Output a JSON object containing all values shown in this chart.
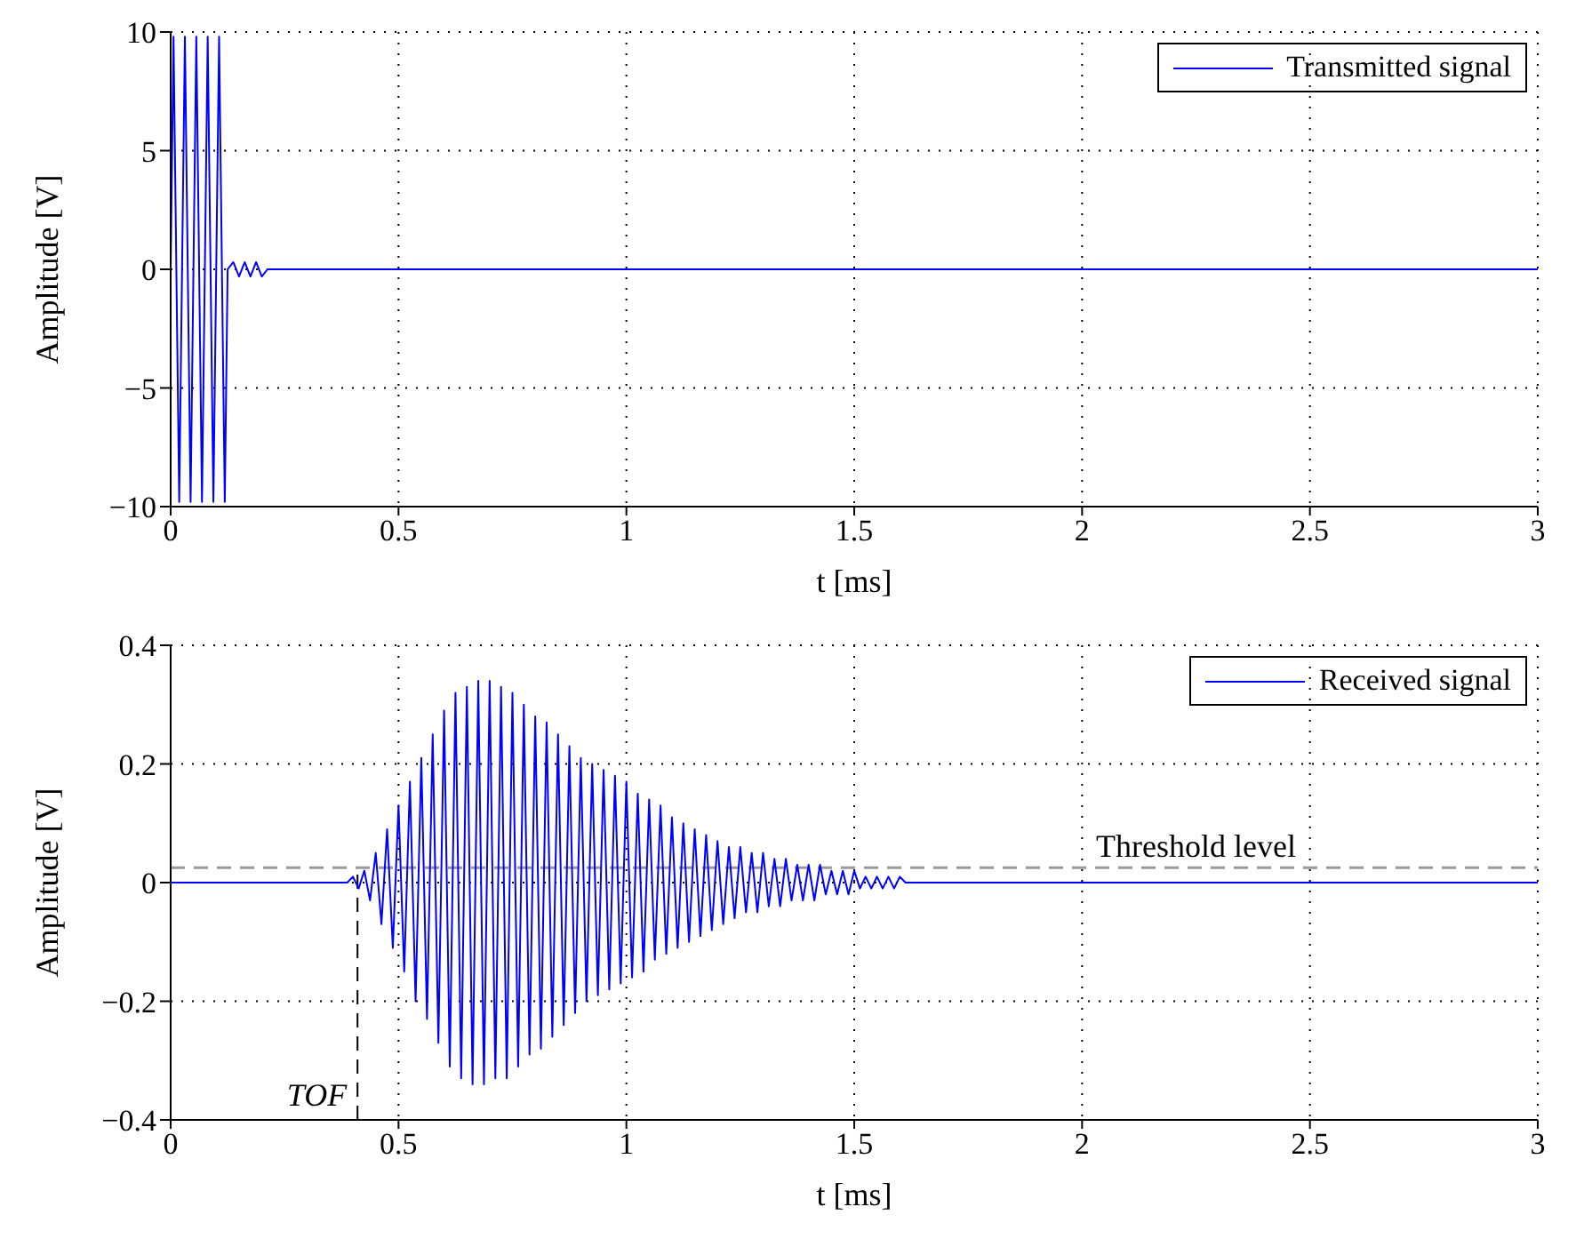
{
  "chart_data": [
    {
      "type": "line",
      "xlabel": "t [ms]",
      "ylabel": "Amplitude [V]",
      "xlim": [
        0,
        3
      ],
      "xticks": [
        0,
        0.5,
        1,
        1.5,
        2,
        2.5,
        3
      ],
      "ylim": [
        -10,
        10
      ],
      "yticks": [
        -10,
        -5,
        0,
        5,
        10
      ],
      "grid": true,
      "legend": "top right",
      "marker": "none",
      "line_style": "solid",
      "series": [
        {
          "name": "Transmitted signal",
          "color": "#0000ff",
          "x": [
            0,
            0.00625,
            0.01875,
            0.03125,
            0.04375,
            0.05625,
            0.06875,
            0.08125,
            0.09375,
            0.10625,
            0.11875,
            0.125,
            0.1375,
            0.15,
            0.1625,
            0.175,
            0.1875,
            0.2,
            0.2125,
            3
          ],
          "values": [
            0,
            9.8,
            -9.8,
            9.8,
            -9.8,
            9.8,
            -9.8,
            9.8,
            -9.8,
            9.8,
            -9.8,
            0,
            0.3,
            -0.3,
            0.3,
            -0.3,
            0.3,
            -0.3,
            0,
            0
          ]
        }
      ]
    },
    {
      "type": "line",
      "xlabel": "t [ms]",
      "ylabel": "Amplitude [V]",
      "xlim": [
        0,
        3
      ],
      "xticks": [
        0,
        0.5,
        1,
        1.5,
        2,
        2.5,
        3
      ],
      "ylim": [
        -0.4,
        0.4
      ],
      "yticks": [
        -0.4,
        -0.2,
        0,
        0.2,
        0.4
      ],
      "grid": true,
      "legend": "top right",
      "marker": "none",
      "line_style": "solid",
      "series": [
        {
          "name": "Received signal",
          "color": "#0000ff",
          "x": [
            0,
            0.3875,
            0.4,
            0.4125,
            0.425,
            0.4375,
            0.45,
            0.4625,
            0.475,
            0.4875,
            0.5,
            0.5125,
            0.525,
            0.5375,
            0.55,
            0.5625,
            0.575,
            0.5875,
            0.6,
            0.6125,
            0.625,
            0.6375,
            0.65,
            0.6625,
            0.675,
            0.6875,
            0.7,
            0.7125,
            0.725,
            0.7375,
            0.75,
            0.7625,
            0.775,
            0.7875,
            0.8,
            0.8125,
            0.825,
            0.8375,
            0.85,
            0.8625,
            0.875,
            0.8875,
            0.9,
            0.9125,
            0.925,
            0.9375,
            0.95,
            0.9625,
            0.975,
            0.9875,
            1,
            1.0125,
            1.025,
            1.0375,
            1.05,
            1.0625,
            1.075,
            1.0875,
            1.1,
            1.1125,
            1.125,
            1.1375,
            1.15,
            1.1625,
            1.175,
            1.1875,
            1.2,
            1.2125,
            1.225,
            1.2375,
            1.25,
            1.2625,
            1.275,
            1.2875,
            1.3,
            1.3125,
            1.325,
            1.3375,
            1.35,
            1.3625,
            1.375,
            1.3875,
            1.4,
            1.4125,
            1.425,
            1.4375,
            1.45,
            1.4625,
            1.475,
            1.4875,
            1.5,
            1.5125,
            1.525,
            1.5375,
            1.55,
            1.5625,
            1.575,
            1.5875,
            1.6,
            1.6125,
            3
          ],
          "values": [
            0,
            0,
            0.01,
            -0.01,
            0.02,
            -0.03,
            0.05,
            -0.07,
            0.09,
            -0.11,
            0.13,
            -0.15,
            0.17,
            -0.2,
            0.21,
            -0.23,
            0.25,
            -0.27,
            0.29,
            -0.31,
            0.32,
            -0.33,
            0.33,
            -0.34,
            0.34,
            -0.34,
            0.34,
            -0.33,
            0.33,
            -0.33,
            0.32,
            -0.31,
            0.3,
            -0.29,
            0.28,
            -0.28,
            0.27,
            -0.26,
            0.25,
            -0.24,
            0.23,
            -0.22,
            0.21,
            -0.2,
            0.2,
            -0.19,
            0.19,
            -0.18,
            0.18,
            -0.17,
            0.17,
            -0.16,
            0.15,
            -0.15,
            0.14,
            -0.13,
            0.13,
            -0.12,
            0.11,
            -0.11,
            0.1,
            -0.1,
            0.09,
            -0.09,
            0.08,
            -0.08,
            0.07,
            -0.07,
            0.06,
            -0.06,
            0.06,
            -0.05,
            0.05,
            -0.05,
            0.05,
            -0.04,
            0.04,
            -0.04,
            0.04,
            -0.03,
            0.03,
            -0.03,
            0.03,
            -0.03,
            0.03,
            -0.02,
            0.02,
            -0.02,
            0.02,
            -0.02,
            0.02,
            -0.01,
            0.01,
            -0.01,
            0.01,
            -0.01,
            0.01,
            -0.01,
            0.01,
            0,
            0
          ]
        }
      ],
      "ref_lines": [
        {
          "axis": "y",
          "value": 0.025,
          "label": "Threshold level",
          "color": "#999999",
          "line_style": "dashed"
        },
        {
          "axis": "x",
          "value": 0.41,
          "label": "TOF",
          "color": "#000000",
          "line_style": "dashed"
        }
      ]
    }
  ]
}
